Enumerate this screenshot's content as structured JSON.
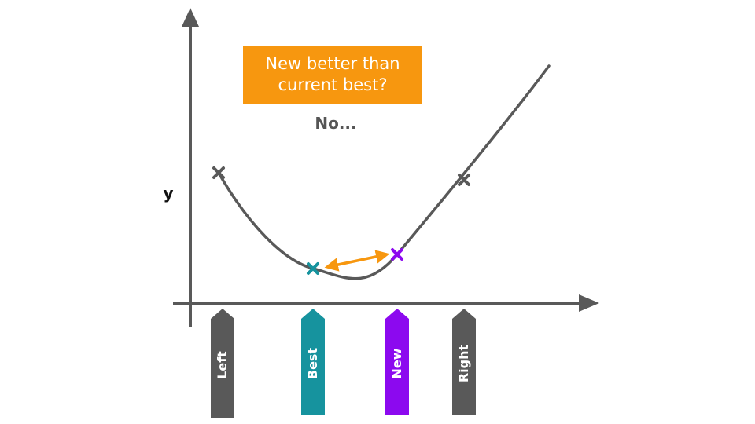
{
  "question": "New better than\ncurrent best?",
  "answer": "No...",
  "axis": {
    "ylabel": "y"
  },
  "markers": [
    {
      "id": "left",
      "label": "Left",
      "color": "#595959"
    },
    {
      "id": "best",
      "label": "Best",
      "color": "#16939E"
    },
    {
      "id": "new",
      "label": "New",
      "color": "#8C09EF"
    },
    {
      "id": "right",
      "label": "Right",
      "color": "#595959"
    }
  ],
  "colors": {
    "axis": "#595959",
    "curve": "#595959",
    "callout": "#F7970F",
    "comparison_arrow": "#F7970F"
  }
}
